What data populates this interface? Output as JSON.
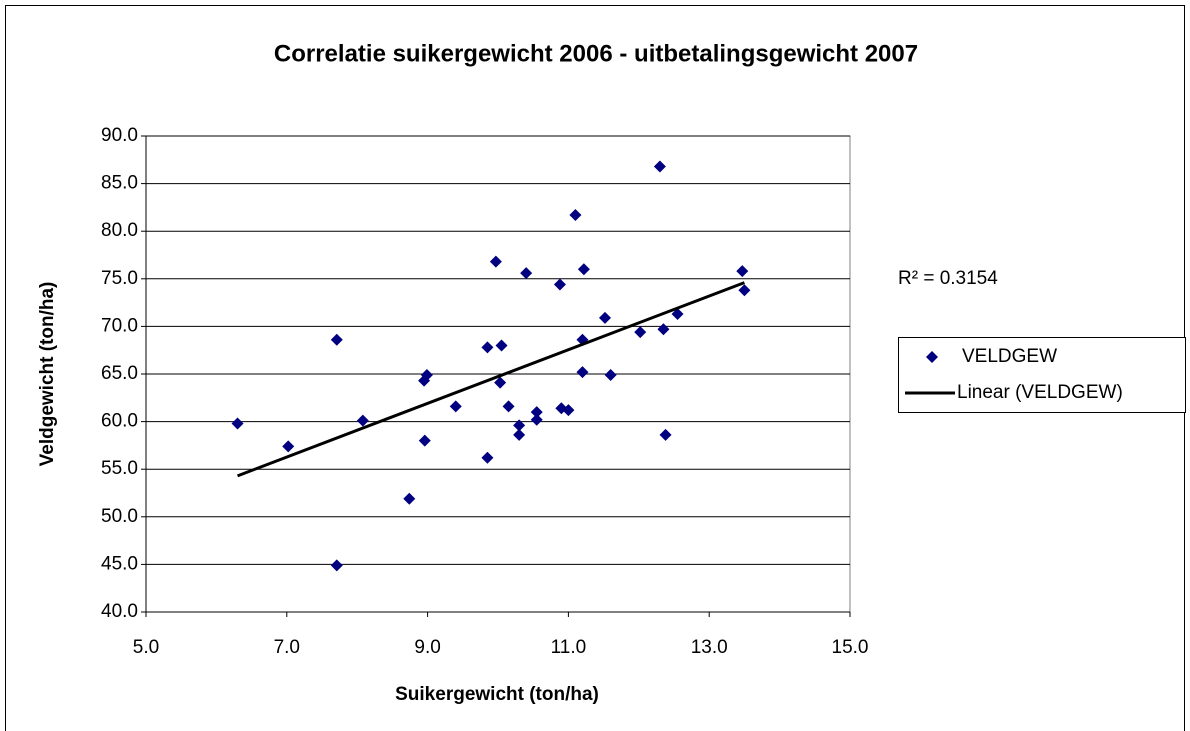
{
  "chart_data": {
    "type": "scatter",
    "title": "Correlatie suikergewicht 2006 - uitbetalingsgewicht 2007",
    "x_label": "Suikergewicht (ton/ha)",
    "y_label": "Veldgewicht (ton/ha)",
    "annotation": "R² = 0.3154",
    "xlim": [
      5,
      15
    ],
    "xticks": [
      {
        "value": 5,
        "label": "5.0"
      },
      {
        "value": 7,
        "label": "7.0"
      },
      {
        "value": 9,
        "label": "9.0"
      },
      {
        "value": 11,
        "label": "11.0"
      },
      {
        "value": 13,
        "label": "13.0"
      },
      {
        "value": 15,
        "label": "15.0"
      }
    ],
    "ylim": [
      40,
      90
    ],
    "yticks": [
      {
        "value": 40,
        "label": "40.0"
      },
      {
        "value": 45,
        "label": "45.0"
      },
      {
        "value": 50,
        "label": "50.0"
      },
      {
        "value": 55,
        "label": "55.0"
      },
      {
        "value": 60,
        "label": "60.0"
      },
      {
        "value": 65,
        "label": "65.0"
      },
      {
        "value": 70,
        "label": "70.0"
      },
      {
        "value": 75,
        "label": "75.0"
      },
      {
        "value": 80,
        "label": "80.0"
      },
      {
        "value": 85,
        "label": "85.0"
      },
      {
        "value": 90,
        "label": "90.0"
      }
    ],
    "grid": true,
    "legend": "right",
    "series": [
      {
        "name": "VELDGEW",
        "color": "#000080",
        "x": [
          6.3,
          7.02,
          7.71,
          7.71,
          8.08,
          8.74,
          8.95,
          8.99,
          8.96,
          9.4,
          9.85,
          9.85,
          9.97,
          10.05,
          10.03,
          10.15,
          10.3,
          10.3,
          10.4,
          10.55,
          10.55,
          10.88,
          10.9,
          11.0,
          11.1,
          11.2,
          11.2,
          11.22,
          11.52,
          11.6,
          12.02,
          12.3,
          12.35,
          12.38,
          12.55,
          13.47,
          13.5
        ],
        "values": [
          59.8,
          57.4,
          68.6,
          44.9,
          60.1,
          51.9,
          64.3,
          64.9,
          58.0,
          61.6,
          56.2,
          67.8,
          76.8,
          68.0,
          64.1,
          61.6,
          59.6,
          58.6,
          75.6,
          61.0,
          60.2,
          74.4,
          61.4,
          61.2,
          81.7,
          68.6,
          65.2,
          76.0,
          70.9,
          64.9,
          69.4,
          86.8,
          69.7,
          58.6,
          71.3,
          75.8,
          73.8
        ]
      },
      {
        "name": "Linear (VELDGEW)",
        "color": "#000000",
        "trendline": true,
        "x": [
          6.3,
          13.5
        ],
        "values": [
          54.3,
          74.6
        ]
      }
    ]
  }
}
